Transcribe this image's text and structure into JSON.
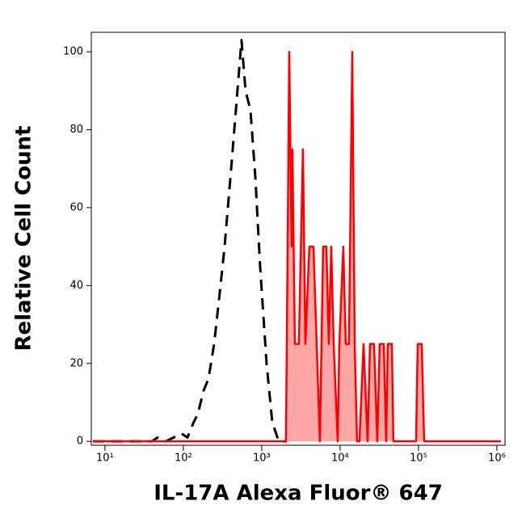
{
  "chart_data": {
    "type": "line",
    "xlabel": "IL-17A Alexa Fluor® 647",
    "ylabel": "Relative Cell Count",
    "xscale": "log",
    "xlim": [
      6.7,
      1270000
    ],
    "ylim": [
      -1,
      105
    ],
    "xticks": [
      {
        "value": 10,
        "label": "10¹"
      },
      {
        "value": 100,
        "label": "10²"
      },
      {
        "value": 1000,
        "label": "10³"
      },
      {
        "value": 10000,
        "label": "10⁴"
      },
      {
        "value": 100000,
        "label": "10⁵"
      },
      {
        "value": 1000000,
        "label": "10⁶"
      }
    ],
    "yticks": [
      0,
      20,
      40,
      60,
      80,
      100
    ],
    "series": [
      {
        "color": "#000000",
        "style": "dashed",
        "fill": false,
        "x": [
          7,
          40,
          46.8,
          59.3,
          75.2,
          95.3,
          113,
          136,
          153,
          181,
          209,
          247,
          291,
          336,
          396,
          468,
          552,
          622,
          718,
          828,
          953,
          1153,
          1362,
          1646,
          2089
        ],
        "values": [
          0,
          0,
          1,
          0,
          1,
          2,
          1,
          5,
          7,
          13,
          16,
          25,
          38,
          50,
          67,
          85,
          103,
          90,
          85,
          68,
          45,
          20,
          5,
          0,
          0
        ]
      },
      {
        "color": "#ff0000",
        "style": "solid",
        "fill": true,
        "x": [
          7,
          2037,
          2138,
          2244,
          2405,
          2466,
          2648,
          2980,
          3356,
          3604,
          4056,
          4571,
          5024,
          5520,
          6075,
          6683,
          7178,
          7709,
          8279,
          9311,
          9772,
          10990,
          11800,
          12970,
          14290,
          15350,
          16440,
          17660,
          19910,
          22440,
          24050,
          27100,
          29790,
          31990,
          36060,
          38730,
          40550,
          45710,
          47860,
          93110,
          97720,
          109900,
          118000,
          1127000
        ],
        "values": [
          0,
          0,
          48,
          100,
          50,
          75,
          25,
          25,
          75,
          25,
          50,
          50,
          25,
          0,
          50,
          50,
          25,
          50,
          25,
          0,
          25,
          50,
          25,
          25,
          100,
          25,
          0,
          0,
          25,
          0,
          25,
          25,
          0,
          25,
          25,
          0,
          25,
          25,
          0,
          0,
          25,
          25,
          0,
          0
        ]
      }
    ]
  }
}
